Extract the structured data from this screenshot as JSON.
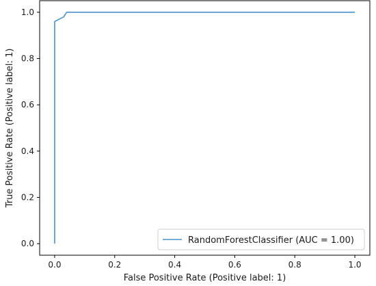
{
  "chart_data": {
    "type": "line",
    "title": "",
    "xlabel": "False Positive Rate (Positive label: 1)",
    "ylabel": "True Positive Rate (Positive label: 1)",
    "xlim": [
      -0.05,
      1.05
    ],
    "ylim": [
      -0.05,
      1.05
    ],
    "xticks": [
      0.0,
      0.2,
      0.4,
      0.6,
      0.8,
      1.0
    ],
    "yticks": [
      0.0,
      0.2,
      0.4,
      0.6,
      0.8,
      1.0
    ],
    "xtick_labels": [
      "0.0",
      "0.2",
      "0.4",
      "0.6",
      "0.8",
      "1.0"
    ],
    "ytick_labels": [
      "0.0",
      "0.2",
      "0.4",
      "0.6",
      "0.8",
      "1.0"
    ],
    "grid": false,
    "legend_position": "lower-right",
    "series": [
      {
        "name": "RandomForestClassifier (AUC = 1.00)",
        "color": "#4a90c8",
        "x": [
          0.0,
          0.0,
          0.0,
          0.03,
          0.04,
          1.0
        ],
        "y": [
          0.0,
          0.0,
          0.96,
          0.98,
          1.0,
          1.0
        ]
      }
    ]
  }
}
